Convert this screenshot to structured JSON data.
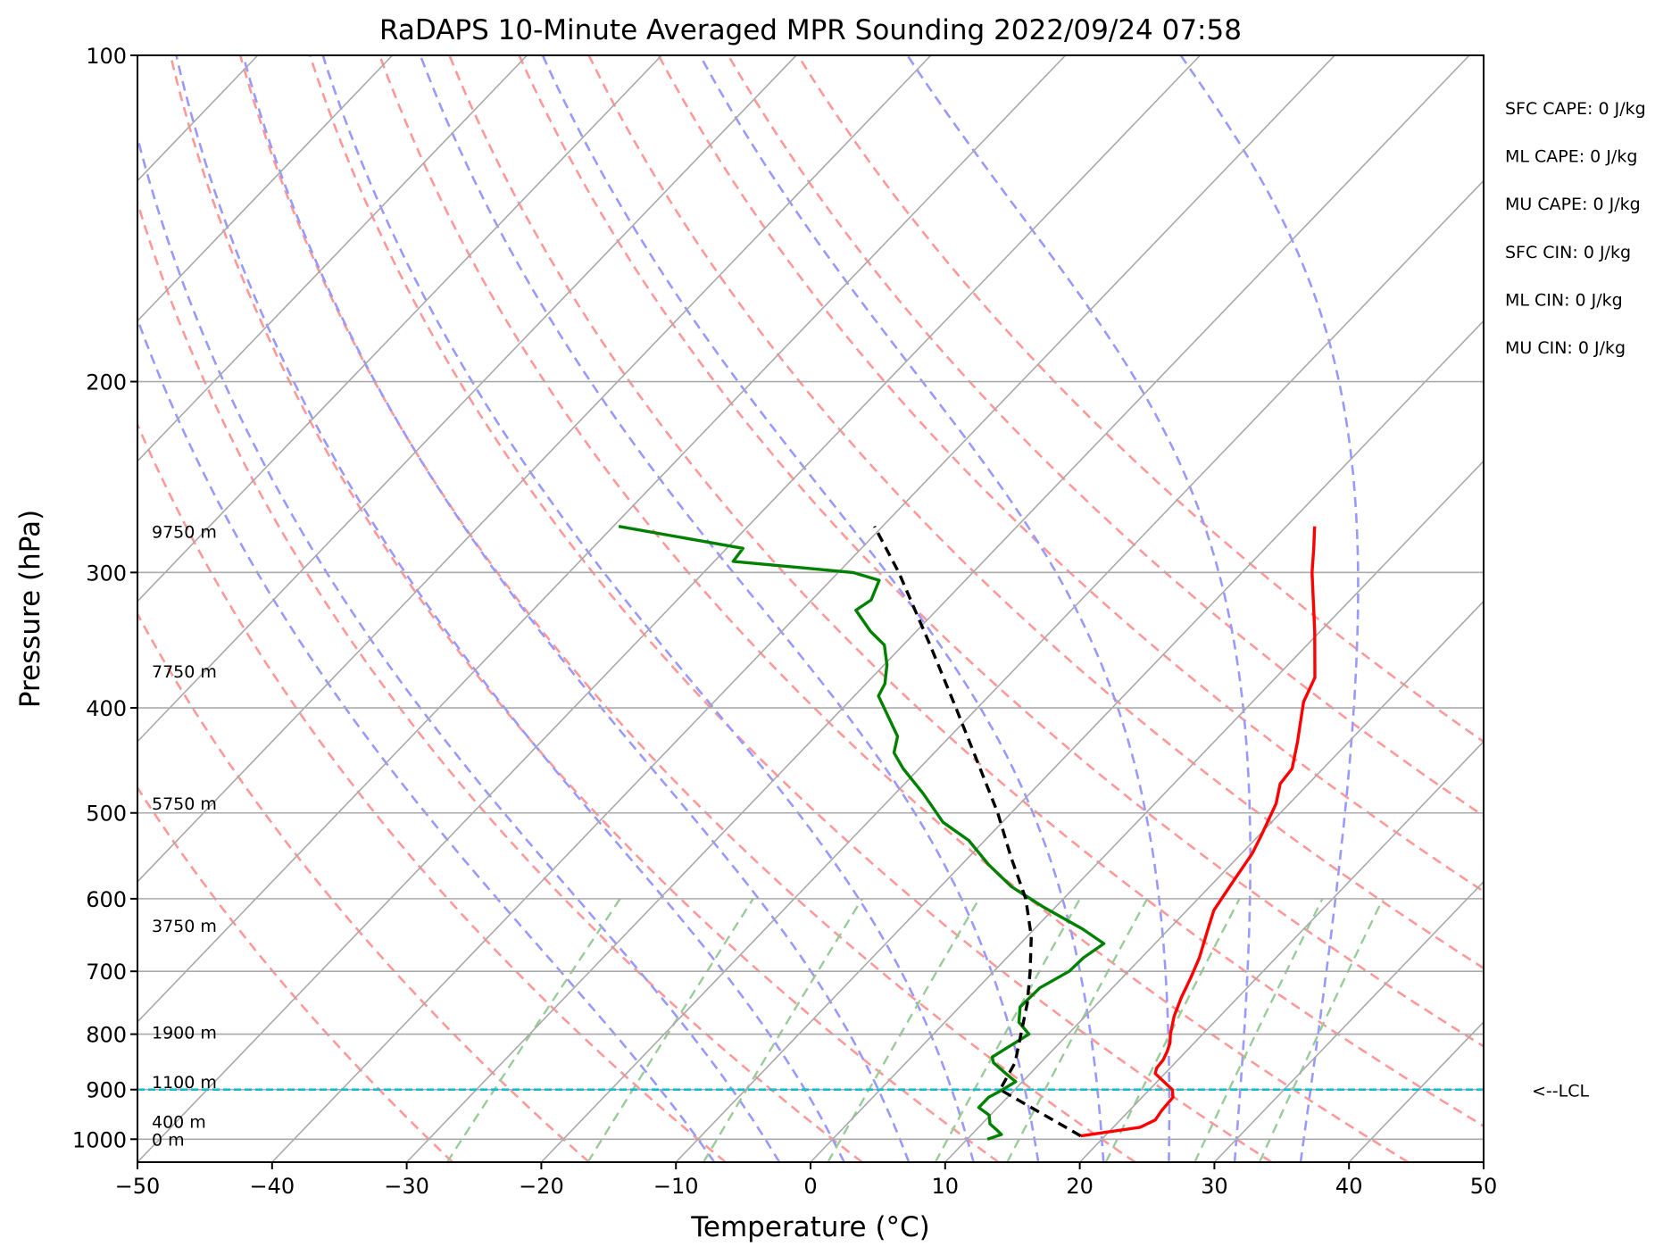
{
  "chart_data": {
    "type": "line",
    "subtype": "skew-T log-P sounding",
    "title": "RaDAPS 10-Minute Averaged MPR Sounding 2022/09/24 07:58",
    "xlabel": "Temperature (°C)",
    "ylabel": "Pressure (hPa)",
    "xlim": [
      -50,
      50
    ],
    "ylim": [
      1050,
      100
    ],
    "y_scale": "log",
    "x_ticks": [
      -50,
      -40,
      -30,
      -20,
      -10,
      0,
      10,
      20,
      30,
      40,
      50
    ],
    "x_tick_labels": [
      "−50",
      "−40",
      "−30",
      "−20",
      "−10",
      "0",
      "10",
      "20",
      "30",
      "40",
      "50"
    ],
    "y_ticks": [
      100,
      200,
      300,
      400,
      500,
      600,
      700,
      800,
      900,
      1000
    ],
    "y_tick_labels": [
      "100",
      "200",
      "300",
      "400",
      "500",
      "600",
      "700",
      "800",
      "900",
      "1000"
    ],
    "grid": true,
    "series": [
      {
        "role": "temperature",
        "color": "#ff0000",
        "style": "solid",
        "points": [
          [
            993,
            18.2
          ],
          [
            975,
            22.0
          ],
          [
            960,
            22.6
          ],
          [
            940,
            22.4
          ],
          [
            915,
            22.3
          ],
          [
            900,
            21.7
          ],
          [
            870,
            19.3
          ],
          [
            860,
            19.0
          ],
          [
            845,
            18.9
          ],
          [
            830,
            18.6
          ],
          [
            815,
            18.2
          ],
          [
            800,
            17.6
          ],
          [
            770,
            16.6
          ],
          [
            740,
            15.8
          ],
          [
            710,
            15.1
          ],
          [
            680,
            14.3
          ],
          [
            640,
            12.9
          ],
          [
            615,
            12.0
          ],
          [
            580,
            11.4
          ],
          [
            545,
            10.8
          ],
          [
            525,
            10.2
          ],
          [
            490,
            9.0
          ],
          [
            470,
            7.9
          ],
          [
            455,
            7.7
          ],
          [
            430,
            6.2
          ],
          [
            395,
            3.8
          ],
          [
            375,
            2.9
          ],
          [
            340,
            -0.4
          ],
          [
            300,
            -4.8
          ],
          [
            285,
            -6.4
          ],
          [
            272,
            -7.9
          ]
        ]
      },
      {
        "role": "dewpoint",
        "color": "#008000",
        "style": "solid",
        "points": [
          [
            1000,
            11.5
          ],
          [
            990,
            12.2
          ],
          [
            980,
            11.5
          ],
          [
            968,
            10.6
          ],
          [
            950,
            9.9
          ],
          [
            935,
            8.6
          ],
          [
            915,
            8.6
          ],
          [
            900,
            9.1
          ],
          [
            885,
            9.5
          ],
          [
            870,
            8.2
          ],
          [
            850,
            6.5
          ],
          [
            840,
            6.0
          ],
          [
            825,
            6.4
          ],
          [
            800,
            7.1
          ],
          [
            780,
            5.5
          ],
          [
            755,
            4.5
          ],
          [
            725,
            4.6
          ],
          [
            700,
            5.6
          ],
          [
            680,
            5.7
          ],
          [
            660,
            6.2
          ],
          [
            640,
            3.6
          ],
          [
            610,
            -1.0
          ],
          [
            585,
            -4.7
          ],
          [
            558,
            -8.0
          ],
          [
            530,
            -11.2
          ],
          [
            510,
            -14.4
          ],
          [
            480,
            -17.9
          ],
          [
            455,
            -21.2
          ],
          [
            440,
            -23.0
          ],
          [
            425,
            -23.9
          ],
          [
            390,
            -28.2
          ],
          [
            380,
            -28.6
          ],
          [
            365,
            -29.8
          ],
          [
            350,
            -31.4
          ],
          [
            340,
            -33.4
          ],
          [
            325,
            -36.0
          ],
          [
            318,
            -35.6
          ],
          [
            305,
            -36.4
          ],
          [
            300,
            -38.9
          ],
          [
            293,
            -48.6
          ],
          [
            285,
            -48.8
          ],
          [
            272,
            -59.6
          ]
        ]
      },
      {
        "role": "parcel profile",
        "color": "#000000",
        "style": "dashed",
        "points": [
          [
            993,
            18.2
          ],
          [
            900,
            8.9
          ],
          [
            850,
            8.1
          ],
          [
            800,
            6.5
          ],
          [
            750,
            4.8
          ],
          [
            700,
            2.7
          ],
          [
            650,
            0.3
          ],
          [
            600,
            -2.8
          ],
          [
            550,
            -6.8
          ],
          [
            500,
            -11.0
          ],
          [
            450,
            -16.0
          ],
          [
            400,
            -21.6
          ],
          [
            350,
            -28.0
          ],
          [
            300,
            -35.5
          ],
          [
            272,
            -40.6
          ]
        ]
      }
    ],
    "dry_adiabats_theta_c": [
      -30,
      -20,
      -10,
      0,
      10,
      20,
      30,
      40,
      50,
      60,
      70,
      80,
      90,
      100
    ],
    "moist_adiabats_c": [
      -10,
      -5,
      0,
      5,
      10,
      15,
      20,
      25,
      30,
      35
    ],
    "mixing_ratio_lines_gkg": [
      0.4,
      1,
      2,
      4,
      7,
      10,
      16,
      24,
      32
    ],
    "lcl_pressure_hpa": 900,
    "lcl_label": "<--LCL",
    "height_labels": [
      {
        "label": "9750 m",
        "p": 275
      },
      {
        "label": "7750 m",
        "p": 370
      },
      {
        "label": "5750 m",
        "p": 490
      },
      {
        "label": "3750 m",
        "p": 635
      },
      {
        "label": "1900 m",
        "p": 797
      },
      {
        "label": "1100 m",
        "p": 885
      },
      {
        "label": "400 m",
        "p": 963
      },
      {
        "label": "0 m",
        "p": 1000
      }
    ],
    "stats": [
      "SFC CAPE: 0 J/kg",
      "ML CAPE: 0 J/kg",
      "MU CAPE: 0 J/kg",
      "SFC CIN: 0 J/kg",
      "ML CIN: 0 J/kg",
      "MU CIN: 0 J/kg"
    ],
    "colors": {
      "isotherm": "#aaaaaa",
      "dry_adiabat": "#ff9999",
      "moist_adiabat": "#9999ff",
      "mixing_ratio": "#99cc99",
      "lcl": "#17becf"
    }
  }
}
